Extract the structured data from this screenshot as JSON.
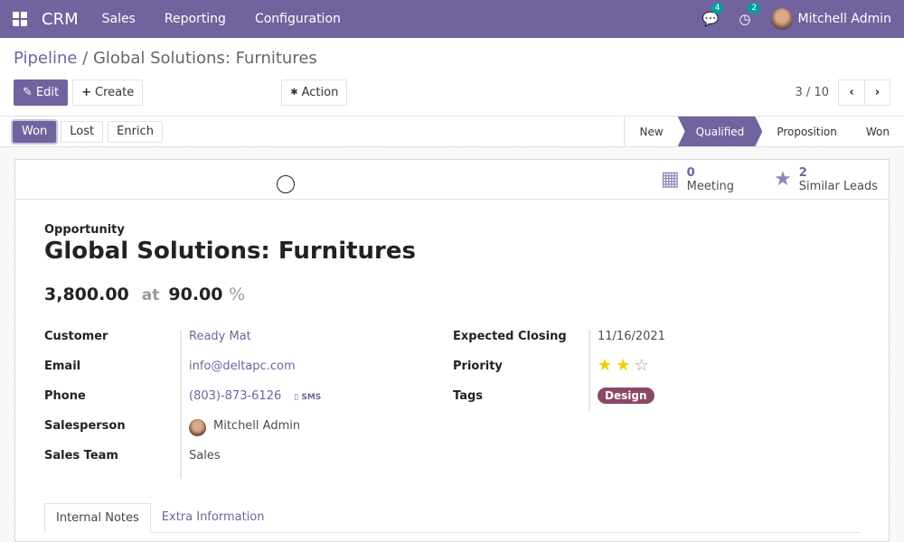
{
  "nav": {
    "brand": "CRM",
    "menus": [
      "Sales",
      "Reporting",
      "Configuration"
    ],
    "messages_count": "4",
    "activities_count": "2",
    "user": "Mitchell Admin"
  },
  "breadcrumb": {
    "parent": "Pipeline",
    "current": "Global Solutions: Furnitures"
  },
  "toolbar": {
    "edit": "Edit",
    "create": "Create",
    "action": "Action",
    "pager": "3 / 10"
  },
  "status": {
    "buttons": [
      "Won",
      "Lost",
      "Enrich"
    ],
    "stages": [
      "New",
      "Qualified",
      "Proposition",
      "Won"
    ],
    "active_stage": "Qualified"
  },
  "smart": {
    "meeting_count": "0",
    "meeting_label": "Meeting",
    "leads_count": "2",
    "leads_label": "Similar Leads"
  },
  "record": {
    "type": "Opportunity",
    "name": "Global Solutions: Furnitures",
    "revenue": "3,800.00",
    "at": "at",
    "probability": "90.00",
    "pct": "%",
    "left_labels": [
      "Customer",
      "Email",
      "Phone",
      "Salesperson",
      "Sales Team"
    ],
    "customer": "Ready Mat",
    "email": "info@deltapc.com",
    "phone": "(803)-873-6126",
    "sms": "SMS",
    "salesperson": "Mitchell Admin",
    "team": "Sales",
    "right_labels": [
      "Expected Closing",
      "Priority",
      "Tags"
    ],
    "closing": "11/16/2021",
    "priority": 2,
    "priority_max": 3,
    "tag": "Design"
  },
  "tabs": [
    "Internal Notes",
    "Extra Information"
  ],
  "colors": {
    "brand": "#71639e",
    "tag": "#8c4668",
    "star": "#f3cc00",
    "badge": "#00a09d"
  }
}
